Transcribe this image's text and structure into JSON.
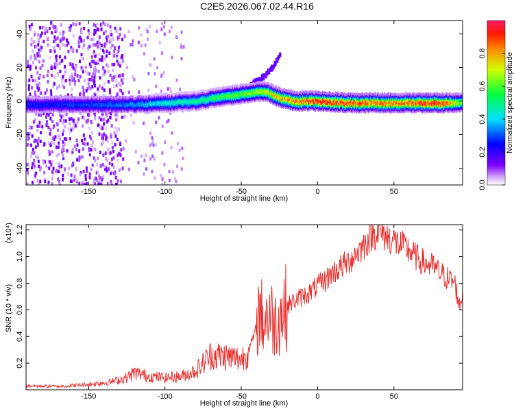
{
  "title": "C2E5.2026.067.02.44.R16",
  "chart_data": [
    {
      "type": "heatmap",
      "xlabel": "Height of straight line (km)",
      "ylabel": "Frequency (Hz)",
      "xlim": [
        -191,
        95
      ],
      "ylim": [
        -50,
        48
      ],
      "xticks": [
        -150,
        -100,
        -50,
        0,
        50
      ],
      "yticks": [
        -40,
        -20,
        0,
        20,
        40
      ],
      "colorbar": {
        "label": "Normalized spectral amplitude",
        "range": [
          0,
          1
        ],
        "ticks": [
          0.0,
          0.2,
          0.4,
          0.6,
          0.8
        ],
        "colormap": "rainbow: violet-blue-cyan-green-yellow-orange-red"
      },
      "ridge": {
        "x": [
          -191,
          -150,
          -120,
          -100,
          -80,
          -60,
          -45,
          -35,
          -25,
          -15,
          0,
          20,
          50,
          80,
          95
        ],
        "frequency": [
          -2,
          -2,
          -2,
          -1,
          0,
          3,
          5,
          6,
          2,
          0,
          0,
          -1,
          -1,
          -1,
          -1
        ],
        "amplitude": [
          0.25,
          0.3,
          0.35,
          0.45,
          0.5,
          0.6,
          0.65,
          0.7,
          0.8,
          0.85,
          0.95,
          0.9,
          0.85,
          0.95,
          0.6
        ]
      },
      "secondary_branch": {
        "x": [
          -60,
          -50,
          -45,
          -40,
          -35,
          -30,
          -25
        ],
        "frequency": [
          6,
          8,
          10,
          13,
          16,
          21,
          28
        ]
      },
      "noise_band_x": [
        -191,
        -128
      ]
    },
    {
      "type": "line",
      "xlabel": "Height of straight line (km)",
      "ylabel": "SNR (10 * v/v)",
      "y_multiplier": "(x10⁴)",
      "xlim": [
        -191,
        95
      ],
      "ylim": [
        0,
        12400
      ],
      "xticks": [
        -150,
        -100,
        -50,
        0,
        50
      ],
      "yticks": [
        2000,
        4000,
        6000,
        8000,
        10000,
        12000
      ],
      "ytick_labels": [
        "0.2",
        "0.4",
        "0.6",
        "0.8",
        "1.0",
        "1.2"
      ],
      "series": [
        {
          "color": "#e8302e",
          "x": [
            -191,
            -170,
            -150,
            -135,
            -125,
            -120,
            -110,
            -100,
            -90,
            -80,
            -75,
            -70,
            -60,
            -50,
            -45,
            -40,
            -38,
            -36,
            -32,
            -28,
            -25,
            -20,
            -15,
            -10,
            -5,
            0,
            5,
            10,
            15,
            20,
            25,
            30,
            35,
            40,
            45,
            50,
            55,
            60,
            65,
            70,
            75,
            80,
            85,
            90,
            93,
            95
          ],
          "y": [
            300,
            250,
            400,
            600,
            900,
            1300,
            1000,
            900,
            1000,
            1400,
            2000,
            2600,
            2500,
            2300,
            3000,
            4600,
            6200,
            5200,
            5800,
            5000,
            5600,
            6300,
            6700,
            7000,
            7300,
            7800,
            8200,
            8800,
            9200,
            9600,
            10200,
            10800,
            11600,
            11900,
            11500,
            11200,
            10800,
            10500,
            9900,
            9500,
            9300,
            8800,
            8400,
            8000,
            6200,
            7400
          ]
        }
      ]
    }
  ]
}
